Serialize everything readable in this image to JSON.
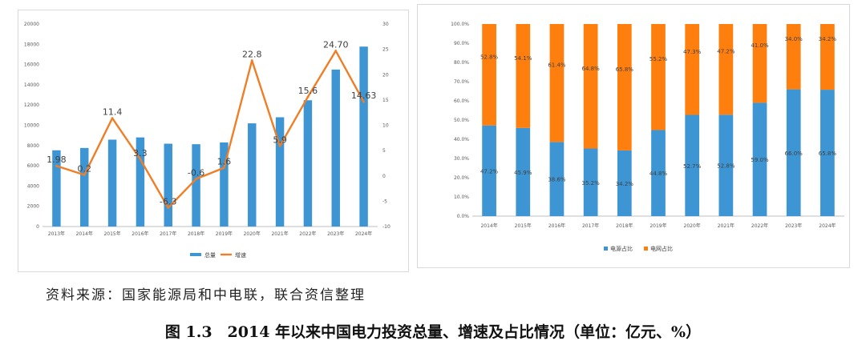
{
  "source": "资料来源：国家能源局和中电联，联合资信整理",
  "caption": "图 1.3　2014 年以来中国电力投资总量、增速及占比情况（单位：亿元、%）",
  "chart_data": [
    {
      "type": "bar+line",
      "categories": [
        "2013年",
        "2014年",
        "2015年",
        "2016年",
        "2017年",
        "2018年",
        "2019年",
        "2020年",
        "2021年",
        "2022年",
        "2023年",
        "2024年"
      ],
      "series": [
        {
          "name": "总量",
          "kind": "bar",
          "axis": "left",
          "color": "#3d95d4",
          "values": [
            7530,
            7760,
            8580,
            8800,
            8180,
            8130,
            8300,
            10190,
            10790,
            12470,
            15500,
            17770
          ]
        },
        {
          "name": "增速",
          "kind": "line",
          "axis": "right",
          "color": "#f07e26",
          "values": [
            1.98,
            0.2,
            11.4,
            3.3,
            -6.3,
            -0.6,
            1.6,
            22.8,
            5.9,
            15.6,
            24.7,
            14.63
          ],
          "labels": [
            "1.98",
            "0.2",
            "11.4",
            "3.3",
            "-6.3",
            "-0.6",
            "1.6",
            "22.8",
            "5.9",
            "15.6",
            "24.70",
            "14.63"
          ]
        }
      ],
      "ylim_left": [
        0,
        20000
      ],
      "yticks_left": [
        "0",
        "2000",
        "4000",
        "6000",
        "8000",
        "10000",
        "12000",
        "14000",
        "16000",
        "18000",
        "20000"
      ],
      "ylim_right": [
        -10,
        30
      ],
      "yticks_right": [
        "-10",
        "-5",
        "0",
        "5",
        "10",
        "15",
        "20",
        "25",
        "30"
      ],
      "legend": [
        "总量",
        "增速"
      ],
      "legend_position": "bottom"
    },
    {
      "type": "stacked-bar",
      "categories": [
        "2014年",
        "2015年",
        "2016年",
        "2017年",
        "2018年",
        "2019年",
        "2020年",
        "2021年",
        "2022年",
        "2023年",
        "2024年"
      ],
      "series": [
        {
          "name": "电源占比",
          "color": "#3d95d4",
          "values": [
            47.2,
            45.9,
            38.6,
            35.2,
            34.2,
            44.8,
            52.7,
            52.8,
            59.0,
            66.0,
            65.8
          ],
          "labels": [
            "47.2%",
            "45.9%",
            "38.6%",
            "35.2%",
            "34.2%",
            "44.8%",
            "52.7%",
            "52.8%",
            "59.0%",
            "66.0%",
            "65.8%"
          ]
        },
        {
          "name": "电网占比",
          "color": "#ff7f0e",
          "values": [
            52.8,
            54.1,
            61.4,
            64.8,
            65.8,
            55.2,
            47.3,
            47.2,
            41.0,
            34.0,
            34.2
          ],
          "labels": [
            "52.8%",
            "54.1%",
            "61.4%",
            "64.8%",
            "65.8%",
            "55.2%",
            "47.3%",
            "47.2%",
            "41.0%",
            "34.0%",
            "34.2%"
          ]
        }
      ],
      "ylim": [
        0,
        100
      ],
      "yticks": [
        "0.0%",
        "10.0%",
        "20.0%",
        "30.0%",
        "40.0%",
        "50.0%",
        "60.0%",
        "70.0%",
        "80.0%",
        "90.0%",
        "100.0%"
      ],
      "legend": [
        "电源占比",
        "电网占比"
      ],
      "legend_position": "bottom"
    }
  ]
}
